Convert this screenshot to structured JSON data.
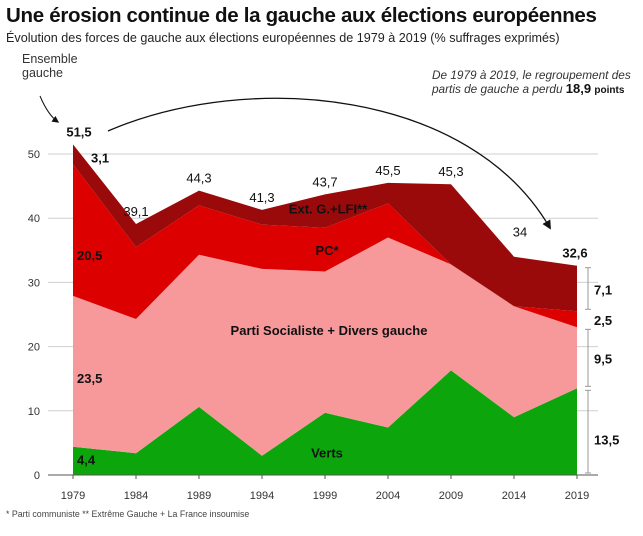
{
  "title": "Une érosion continue de la gauche aux élections européennes",
  "subtitle": "Évolution des forces de gauche aux élections européennes de 1979 à 2019 (% suffrages exprimés)",
  "ensemble_label": "Ensemble gauche",
  "note": {
    "text": "De 1979 à 2019, le regroupement des partis de gauche a perdu",
    "value": "18,9",
    "unit": "points"
  },
  "footnote": "* Parti communiste ** Extrême Gauche + La France insoumise",
  "colors": {
    "verts": "#0ca60c",
    "ps": "#f7999b",
    "pc": "#dc0000",
    "ext": "#9a0a0a",
    "grid": "#cfcfcf",
    "text_dark": "#111111",
    "red_label": "#b30000"
  },
  "chart_data": {
    "type": "area",
    "stacked": true,
    "x": [
      1979,
      1984,
      1989,
      1994,
      1999,
      2004,
      2009,
      2014,
      2019
    ],
    "x_tick_labels": [
      "1979",
      "1984",
      "1989",
      "1994",
      "1999",
      "2004",
      "2009",
      "2014",
      "2019"
    ],
    "ylim": [
      0,
      55
    ],
    "y_ticks": [
      0,
      10,
      20,
      30,
      40,
      50
    ],
    "y_tick_labels": [
      "0",
      "10",
      "20",
      "30",
      "40",
      "50"
    ],
    "grid": true,
    "series": [
      {
        "name": "Verts",
        "key": "verts",
        "values": [
          4.4,
          3.4,
          10.6,
          3.0,
          9.7,
          7.4,
          16.3,
          9.0,
          13.5
        ]
      },
      {
        "name": "Parti Socialiste + Divers gauche",
        "key": "ps",
        "values": [
          23.5,
          20.9,
          23.7,
          29.1,
          22.0,
          29.6,
          16.5,
          17.3,
          9.5
        ]
      },
      {
        "name": "PC*",
        "key": "pc",
        "values": [
          20.5,
          11.2,
          7.7,
          6.9,
          6.8,
          5.3,
          0.0,
          0.0,
          2.5
        ]
      },
      {
        "name": "Ext. G.+LFI**",
        "key": "ext",
        "values": [
          3.1,
          3.6,
          2.3,
          2.3,
          5.2,
          3.2,
          12.5,
          7.7,
          7.1
        ]
      }
    ],
    "totals": [
      51.5,
      39.1,
      44.3,
      41.3,
      43.7,
      45.5,
      45.3,
      34.0,
      32.6
    ],
    "total_labels": [
      "51,5",
      "39,1",
      "44,3",
      "41,3",
      "43,7",
      "45,5",
      "45,3",
      "34",
      "32,6"
    ],
    "in_area_labels": {
      "ext_1979": "3,1",
      "pc_1979": "20,5",
      "ps_1979": "23,5",
      "verts_1979": "4,4",
      "ext_name": "Ext. G.+LFI**",
      "pc_name": "PC*",
      "ps_name": "Parti Socialiste + Divers gauche",
      "verts_name": "Verts"
    },
    "right_labels": [
      {
        "series": "ext",
        "text": "7,1"
      },
      {
        "series": "pc",
        "text": "2,5"
      },
      {
        "series": "ps",
        "text": "9,5"
      },
      {
        "series": "verts",
        "text": "13,5"
      }
    ]
  }
}
